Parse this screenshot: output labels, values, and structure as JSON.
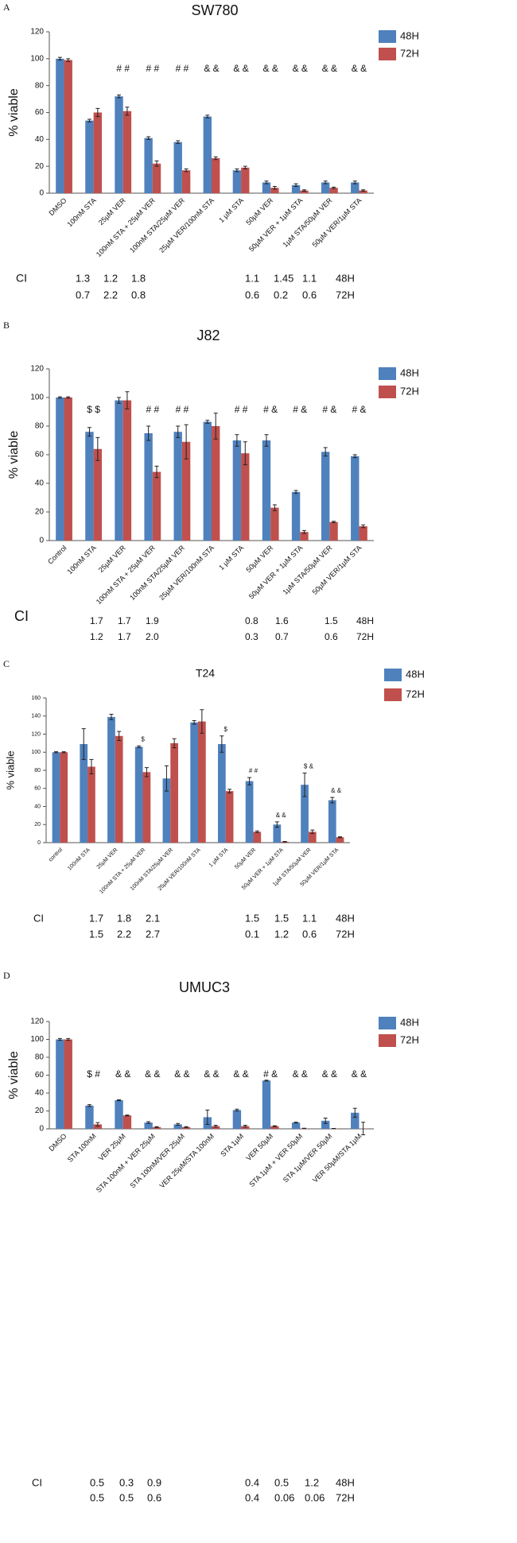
{
  "chart_data": [
    {
      "type": "bar",
      "panel": "A",
      "title": "SW780",
      "ylabel": "% viable",
      "categories": [
        "DMSO",
        "100nM STA",
        "25µM VER",
        "100nM STA + 25µM VER",
        "100nM STA/25µM VER",
        "25µM VER/100nM STA",
        "1 µM STA",
        "50µM VER",
        "50µM VER + 1µM STA",
        "1µM STA/50µM VER",
        "50µM VER/1µM STA"
      ],
      "series": [
        {
          "name": "48H",
          "color": "#4f81bd",
          "values": [
            100,
            54,
            72,
            41,
            38,
            57,
            17,
            8,
            6,
            8,
            8
          ],
          "errors": [
            1,
            1,
            1,
            1,
            1,
            1,
            1,
            1,
            1,
            1,
            1
          ]
        },
        {
          "name": "72H",
          "color": "#c0504d",
          "values": [
            99,
            60,
            61,
            22,
            17,
            26,
            19,
            4,
            2,
            4,
            2
          ],
          "errors": [
            1,
            3,
            3,
            2,
            1,
            1,
            1,
            1,
            0.5,
            0.5,
            0.5
          ]
        }
      ],
      "annotations": [
        null,
        null,
        "# #",
        "# #",
        "# #",
        "& &",
        "& &",
        "& &",
        "& &",
        "& &",
        "& &"
      ],
      "ylim": [
        0,
        120
      ],
      "yticks": [
        0,
        20,
        40,
        60,
        80,
        100,
        120
      ],
      "ci": {
        "label": "CI",
        "rows": [
          {
            "values": [
              "1.3",
              "1.2",
              "1.8",
              "1.1",
              "1.45",
              "1.1"
            ],
            "name": "48H"
          },
          {
            "values": [
              "0.7",
              "2.2",
              "0.8",
              "0.6",
              "0.2",
              "0.6"
            ],
            "name": "72H"
          }
        ]
      }
    },
    {
      "type": "bar",
      "panel": "B",
      "title": "J82",
      "ylabel": "% viable",
      "categories": [
        "Control",
        "100nM STA",
        "25µM VER",
        "100nM STA + 25µM VER",
        "100nM STA/25µM VER",
        "25µM VER/100nM STA",
        "1 µM STA",
        "50µM VER",
        "50µM VER + 1µM STA",
        "1µM STA/50µM VER",
        "50µM VER/1µM STA"
      ],
      "series": [
        {
          "name": "48H",
          "color": "#4f81bd",
          "values": [
            100,
            76,
            98,
            75,
            76,
            83,
            70,
            70,
            34,
            62,
            59
          ],
          "errors": [
            0.5,
            3,
            2,
            5,
            4,
            1,
            4,
            4,
            1,
            3,
            1
          ]
        },
        {
          "name": "72H",
          "color": "#c0504d",
          "values": [
            100,
            64,
            98,
            48,
            69,
            80,
            61,
            23,
            6,
            13,
            10
          ],
          "errors": [
            0.5,
            8,
            6,
            4,
            12,
            9,
            8,
            2,
            1,
            0.5,
            1
          ]
        }
      ],
      "annotations": [
        null,
        "$ $",
        null,
        "# #",
        "# #",
        null,
        "# #",
        "# &",
        "# &",
        "# &",
        "# &"
      ],
      "ylim": [
        0,
        120
      ],
      "yticks": [
        0,
        20,
        40,
        60,
        80,
        100,
        120
      ],
      "ci": {
        "label": "CI",
        "rows": [
          {
            "values": [
              "1.7",
              "1.7",
              "1.9",
              "0.8",
              "1.6",
              "1.5"
            ],
            "name": "48H"
          },
          {
            "values": [
              "1.2",
              "1.7",
              "2.0",
              "0.3",
              "0.7",
              "0.6"
            ],
            "name": "72H"
          }
        ]
      }
    },
    {
      "type": "bar",
      "panel": "C",
      "title": "T24",
      "ylabel": "% viable",
      "categories": [
        "control",
        "100nM STA",
        "25µM VER",
        "100nM STA + 25µM VER",
        "100nM STA/25µM VER",
        "25µM VER/100nM STA",
        "1 µM STA",
        "50µM VER",
        "50µM VER + 1µM STA",
        "1µM STA/50µM VER",
        "50µM VER/1µM STA"
      ],
      "series": [
        {
          "name": "48H",
          "color": "#4f81bd",
          "values": [
            100,
            109,
            139,
            106,
            71,
            133,
            109,
            68,
            20,
            64,
            47
          ],
          "errors": [
            0.5,
            17,
            3,
            1,
            14,
            2,
            9,
            4,
            3,
            13,
            3
          ]
        },
        {
          "name": "72H",
          "color": "#c0504d",
          "values": [
            100,
            84,
            118,
            78,
            110,
            134,
            57,
            12,
            1,
            12,
            6
          ],
          "errors": [
            0.5,
            8,
            5,
            5,
            5,
            13,
            2,
            1,
            0.3,
            2,
            0.5
          ]
        }
      ],
      "annotations": [
        null,
        null,
        null,
        "$",
        null,
        null,
        "$",
        "# #",
        "& &",
        "$ &",
        "& &"
      ],
      "ylim": [
        0,
        160
      ],
      "yticks": [
        0,
        20,
        40,
        60,
        80,
        100,
        120,
        140,
        160
      ],
      "ci": {
        "label": "CI",
        "rows": [
          {
            "values": [
              "1.7",
              "1.8",
              "2.1",
              "1.5",
              "1.5",
              "1.1"
            ],
            "name": "48H"
          },
          {
            "values": [
              "1.5",
              "2.2",
              "2.7",
              "0.1",
              "1.2",
              "0.6"
            ],
            "name": "72H"
          }
        ]
      }
    },
    {
      "type": "bar",
      "panel": "D",
      "title": "UMUC3",
      "ylabel": "% viable",
      "categories": [
        "DMSO",
        "STA 100nM",
        "VER 25µM",
        "STA 100nM + VER 25µM",
        "STA 100nM/VER 25µM",
        "VER 25µM/STA 100nM",
        "STA 1µM",
        "VER 50µM",
        "STA 1µM + VER 50µM",
        "STA 1µM/VER 50µM",
        "VER 50µM/STA 1µM"
      ],
      "series": [
        {
          "name": "48H",
          "color": "#4f81bd",
          "values": [
            100,
            26,
            32,
            7,
            5,
            13,
            21,
            54,
            7,
            9,
            18
          ],
          "errors": [
            1,
            1,
            0.5,
            1,
            1,
            8,
            1,
            0.5,
            0.5,
            3,
            5
          ]
        },
        {
          "name": "72H",
          "color": "#c0504d",
          "values": [
            100,
            5,
            15,
            2,
            2,
            3,
            3,
            3,
            0.5,
            0.3,
            0.3
          ],
          "errors": [
            1,
            2,
            0.5,
            0.5,
            0.5,
            1,
            1,
            0.5,
            0.2,
            0.2,
            7
          ]
        }
      ],
      "annotations": [
        null,
        "$ #",
        "& &",
        "& &",
        "& &",
        "& &",
        "& &",
        "# &",
        "& &",
        "& &",
        "& &"
      ],
      "ylim": [
        0,
        120
      ],
      "yticks": [
        0,
        20,
        40,
        60,
        80,
        100,
        120
      ],
      "ci": {
        "label": "CI",
        "rows": [
          {
            "values": [
              "0.5",
              "0.3",
              "0.9",
              "0.4",
              "0.5",
              "1.2"
            ],
            "name": "48H"
          },
          {
            "values": [
              "0.5",
              "0.5",
              "0.6",
              "0.4",
              "0.06",
              "0.06"
            ],
            "name": "72H"
          }
        ]
      }
    }
  ]
}
